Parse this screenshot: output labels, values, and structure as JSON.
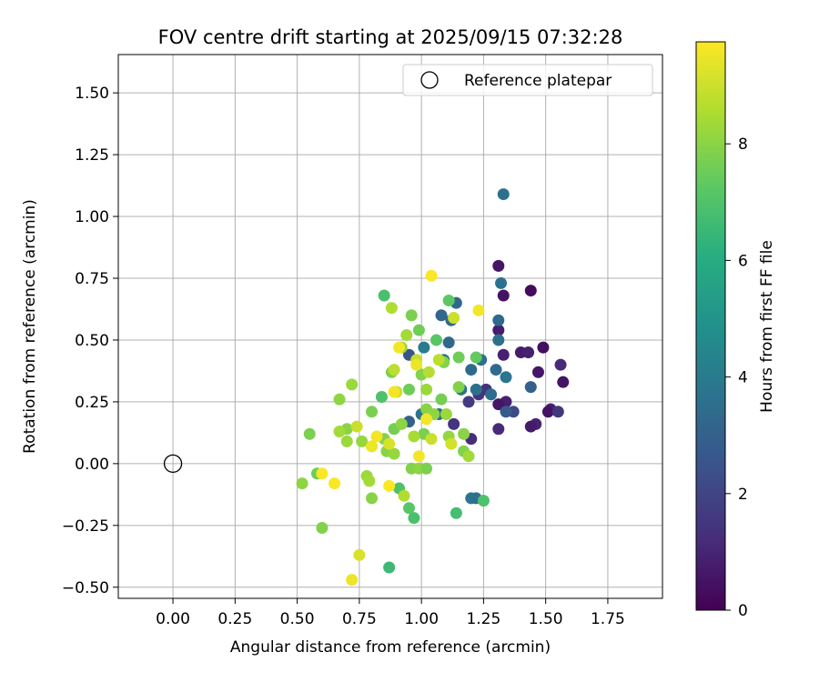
{
  "chart_data": {
    "type": "scatter",
    "title": "FOV centre drift starting at 2025/09/15 07:32:28",
    "xlabel": "Angular distance from reference (arcmin)",
    "ylabel": "Rotation from reference (arcmin)",
    "xlim": [
      -0.22,
      1.97
    ],
    "ylim": [
      -0.545,
      1.655
    ],
    "xticks": [
      0.0,
      0.25,
      0.5,
      0.75,
      1.0,
      1.25,
      1.5,
      1.75
    ],
    "xtick_labels": [
      "0.00",
      "0.25",
      "0.50",
      "0.75",
      "1.00",
      "1.25",
      "1.50",
      "1.75"
    ],
    "yticks": [
      -0.5,
      -0.25,
      0.0,
      0.25,
      0.5,
      0.75,
      1.0,
      1.25,
      1.5
    ],
    "ytick_labels": [
      "−0.50",
      "−0.25",
      "0.00",
      "0.25",
      "0.50",
      "0.75",
      "1.00",
      "1.25",
      "1.50"
    ],
    "grid": true,
    "legend": {
      "position": "top-right",
      "entries": [
        "Reference platepar"
      ]
    },
    "reference_point": {
      "x": 0.0,
      "y": 0.0,
      "marker": "open-circle"
    },
    "colorbar": {
      "label": "Hours from first FF file",
      "colormap": "viridis",
      "range": [
        0,
        9.75
      ],
      "ticks": [
        0,
        2,
        4,
        6,
        8
      ],
      "tick_labels": [
        "0",
        "2",
        "4",
        "6",
        "8"
      ]
    },
    "points": [
      {
        "x": 1.44,
        "y": 0.7,
        "c": 0.3
      },
      {
        "x": 1.31,
        "y": 0.8,
        "c": 0.6
      },
      {
        "x": 1.33,
        "y": 0.68,
        "c": 0.5
      },
      {
        "x": 1.31,
        "y": 0.54,
        "c": 0.8
      },
      {
        "x": 1.33,
        "y": 0.44,
        "c": 0.9
      },
      {
        "x": 1.4,
        "y": 0.45,
        "c": 0.8
      },
      {
        "x": 1.43,
        "y": 0.45,
        "c": 0.9
      },
      {
        "x": 1.49,
        "y": 0.47,
        "c": 0.4
      },
      {
        "x": 1.56,
        "y": 0.4,
        "c": 1.2
      },
      {
        "x": 1.57,
        "y": 0.33,
        "c": 0.5
      },
      {
        "x": 1.47,
        "y": 0.37,
        "c": 0.6
      },
      {
        "x": 1.52,
        "y": 0.22,
        "c": 0.9
      },
      {
        "x": 1.51,
        "y": 0.21,
        "c": 0.5
      },
      {
        "x": 1.55,
        "y": 0.21,
        "c": 1.6
      },
      {
        "x": 1.46,
        "y": 0.16,
        "c": 1.0
      },
      {
        "x": 1.44,
        "y": 0.15,
        "c": 0.7
      },
      {
        "x": 1.34,
        "y": 0.25,
        "c": 0.9
      },
      {
        "x": 1.31,
        "y": 0.24,
        "c": 0.6
      },
      {
        "x": 1.31,
        "y": 0.14,
        "c": 1.2
      },
      {
        "x": 1.26,
        "y": 0.3,
        "c": 1.4
      },
      {
        "x": 1.23,
        "y": 0.28,
        "c": 1.5
      },
      {
        "x": 1.19,
        "y": 0.25,
        "c": 1.7
      },
      {
        "x": 1.2,
        "y": 0.1,
        "c": 1.3
      },
      {
        "x": 1.13,
        "y": 0.16,
        "c": 1.5
      },
      {
        "x": 1.37,
        "y": 0.21,
        "c": 2.2
      },
      {
        "x": 1.34,
        "y": 0.21,
        "c": 2.8
      },
      {
        "x": 1.44,
        "y": 0.31,
        "c": 3.0
      },
      {
        "x": 1.33,
        "y": 1.09,
        "c": 3.6
      },
      {
        "x": 1.32,
        "y": 0.73,
        "c": 3.7
      },
      {
        "x": 1.31,
        "y": 0.58,
        "c": 3.4
      },
      {
        "x": 1.31,
        "y": 0.5,
        "c": 3.6
      },
      {
        "x": 1.3,
        "y": 0.38,
        "c": 3.4
      },
      {
        "x": 1.34,
        "y": 0.35,
        "c": 3.8
      },
      {
        "x": 1.28,
        "y": 0.28,
        "c": 3.5
      },
      {
        "x": 1.24,
        "y": 0.42,
        "c": 3.6
      },
      {
        "x": 1.2,
        "y": 0.38,
        "c": 3.4
      },
      {
        "x": 1.22,
        "y": 0.3,
        "c": 3.6
      },
      {
        "x": 1.14,
        "y": 0.65,
        "c": 3.3
      },
      {
        "x": 1.12,
        "y": 0.58,
        "c": 3.3
      },
      {
        "x": 1.08,
        "y": 0.6,
        "c": 3.2
      },
      {
        "x": 1.11,
        "y": 0.49,
        "c": 3.4
      },
      {
        "x": 1.09,
        "y": 0.42,
        "c": 3.9
      },
      {
        "x": 1.01,
        "y": 0.47,
        "c": 4.1
      },
      {
        "x": 0.95,
        "y": 0.44,
        "c": 2.6
      },
      {
        "x": 0.95,
        "y": 0.17,
        "c": 3.0
      },
      {
        "x": 1.0,
        "y": 0.2,
        "c": 3.8
      },
      {
        "x": 1.07,
        "y": 0.2,
        "c": 3.5
      },
      {
        "x": 1.16,
        "y": 0.3,
        "c": 3.7
      },
      {
        "x": 1.2,
        "y": -0.14,
        "c": 3.8
      },
      {
        "x": 1.22,
        "y": -0.14,
        "c": 3.6
      },
      {
        "x": 1.25,
        "y": -0.15,
        "c": 7.0
      },
      {
        "x": 1.14,
        "y": -0.2,
        "c": 6.8
      },
      {
        "x": 0.87,
        "y": -0.42,
        "c": 6.6
      },
      {
        "x": 0.97,
        "y": -0.22,
        "c": 6.9
      },
      {
        "x": 0.95,
        "y": -0.18,
        "c": 7.2
      },
      {
        "x": 0.91,
        "y": -0.1,
        "c": 7.0
      },
      {
        "x": 0.85,
        "y": 0.68,
        "c": 6.9
      },
      {
        "x": 1.11,
        "y": 0.66,
        "c": 7.3
      },
      {
        "x": 0.96,
        "y": 0.6,
        "c": 7.8
      },
      {
        "x": 0.99,
        "y": 0.54,
        "c": 7.6
      },
      {
        "x": 1.06,
        "y": 0.5,
        "c": 7.2
      },
      {
        "x": 0.94,
        "y": 0.52,
        "c": 8.4
      },
      {
        "x": 1.22,
        "y": 0.43,
        "c": 7.4
      },
      {
        "x": 1.15,
        "y": 0.43,
        "c": 7.6
      },
      {
        "x": 1.09,
        "y": 0.41,
        "c": 7.9
      },
      {
        "x": 0.92,
        "y": 0.47,
        "c": 8.2
      },
      {
        "x": 0.88,
        "y": 0.37,
        "c": 7.8
      },
      {
        "x": 1.0,
        "y": 0.36,
        "c": 7.9
      },
      {
        "x": 0.95,
        "y": 0.3,
        "c": 7.6
      },
      {
        "x": 1.02,
        "y": 0.3,
        "c": 8.3
      },
      {
        "x": 1.08,
        "y": 0.26,
        "c": 7.7
      },
      {
        "x": 1.15,
        "y": 0.31,
        "c": 7.9
      },
      {
        "x": 0.84,
        "y": 0.27,
        "c": 7.0
      },
      {
        "x": 0.67,
        "y": 0.26,
        "c": 8.1
      },
      {
        "x": 0.72,
        "y": 0.32,
        "c": 8.3
      },
      {
        "x": 0.8,
        "y": 0.21,
        "c": 7.8
      },
      {
        "x": 1.02,
        "y": 0.22,
        "c": 8.0
      },
      {
        "x": 1.05,
        "y": 0.2,
        "c": 8.1
      },
      {
        "x": 1.1,
        "y": 0.2,
        "c": 8.3
      },
      {
        "x": 1.17,
        "y": 0.12,
        "c": 8.0
      },
      {
        "x": 1.11,
        "y": 0.11,
        "c": 8.2
      },
      {
        "x": 1.01,
        "y": 0.12,
        "c": 7.8
      },
      {
        "x": 0.97,
        "y": 0.11,
        "c": 8.5
      },
      {
        "x": 0.89,
        "y": 0.14,
        "c": 7.7
      },
      {
        "x": 0.92,
        "y": 0.16,
        "c": 8.1
      },
      {
        "x": 0.85,
        "y": 0.1,
        "c": 7.9
      },
      {
        "x": 0.76,
        "y": 0.09,
        "c": 8.2
      },
      {
        "x": 0.7,
        "y": 0.14,
        "c": 8.0
      },
      {
        "x": 0.67,
        "y": 0.13,
        "c": 8.4
      },
      {
        "x": 0.7,
        "y": 0.09,
        "c": 8.3
      },
      {
        "x": 0.55,
        "y": 0.12,
        "c": 7.8
      },
      {
        "x": 0.58,
        "y": -0.04,
        "c": 7.6
      },
      {
        "x": 0.52,
        "y": -0.08,
        "c": 8.1
      },
      {
        "x": 0.6,
        "y": -0.26,
        "c": 7.9
      },
      {
        "x": 0.8,
        "y": -0.14,
        "c": 8.0
      },
      {
        "x": 0.78,
        "y": -0.05,
        "c": 8.3
      },
      {
        "x": 0.79,
        "y": -0.07,
        "c": 8.4
      },
      {
        "x": 0.86,
        "y": 0.05,
        "c": 8.0
      },
      {
        "x": 0.89,
        "y": 0.04,
        "c": 8.2
      },
      {
        "x": 0.96,
        "y": -0.02,
        "c": 7.9
      },
      {
        "x": 0.99,
        "y": -0.02,
        "c": 8.1
      },
      {
        "x": 1.02,
        "y": -0.02,
        "c": 7.8
      },
      {
        "x": 1.17,
        "y": 0.05,
        "c": 7.9
      },
      {
        "x": 1.19,
        "y": 0.03,
        "c": 8.4
      },
      {
        "x": 0.93,
        "y": -0.13,
        "c": 8.6
      },
      {
        "x": 0.88,
        "y": 0.63,
        "c": 8.6
      },
      {
        "x": 0.89,
        "y": 0.38,
        "c": 8.8
      },
      {
        "x": 0.98,
        "y": 0.42,
        "c": 8.9
      },
      {
        "x": 1.07,
        "y": 0.42,
        "c": 8.8
      },
      {
        "x": 1.03,
        "y": 0.37,
        "c": 8.7
      },
      {
        "x": 1.13,
        "y": 0.59,
        "c": 9.0
      },
      {
        "x": 0.9,
        "y": 0.29,
        "c": 8.9
      },
      {
        "x": 1.04,
        "y": 0.1,
        "c": 9.0
      },
      {
        "x": 0.74,
        "y": 0.15,
        "c": 9.0
      },
      {
        "x": 0.8,
        "y": 0.07,
        "c": 9.2
      },
      {
        "x": 0.87,
        "y": 0.08,
        "c": 9.2
      },
      {
        "x": 1.12,
        "y": 0.08,
        "c": 9.1
      },
      {
        "x": 0.75,
        "y": -0.37,
        "c": 9.2
      },
      {
        "x": 0.72,
        "y": -0.47,
        "c": 9.5
      },
      {
        "x": 1.04,
        "y": 0.76,
        "c": 9.7
      },
      {
        "x": 1.23,
        "y": 0.62,
        "c": 9.6
      },
      {
        "x": 0.91,
        "y": 0.47,
        "c": 9.6
      },
      {
        "x": 0.98,
        "y": 0.4,
        "c": 9.5
      },
      {
        "x": 0.89,
        "y": 0.29,
        "c": 9.6
      },
      {
        "x": 1.02,
        "y": 0.18,
        "c": 9.6
      },
      {
        "x": 0.8,
        "y": 0.07,
        "c": 9.5
      },
      {
        "x": 0.82,
        "y": 0.11,
        "c": 9.6
      },
      {
        "x": 0.99,
        "y": 0.03,
        "c": 9.6
      },
      {
        "x": 0.87,
        "y": -0.09,
        "c": 9.7
      },
      {
        "x": 0.6,
        "y": -0.04,
        "c": 9.7
      },
      {
        "x": 0.65,
        "y": -0.08,
        "c": 9.7
      }
    ]
  }
}
